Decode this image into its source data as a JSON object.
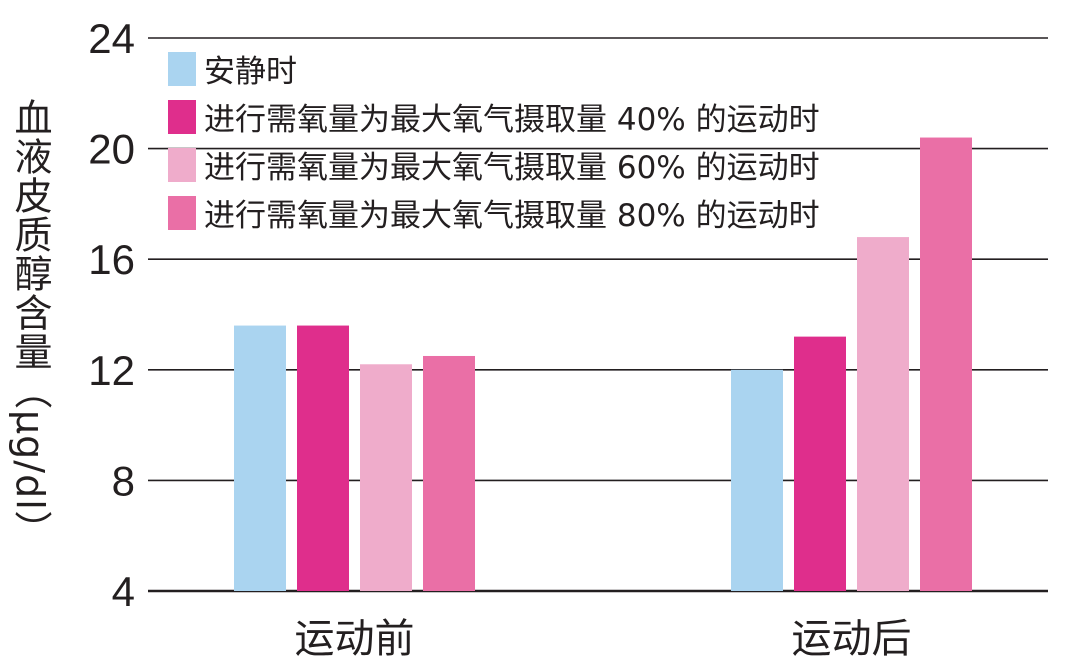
{
  "chart_data": {
    "type": "bar",
    "categories": [
      "运动前",
      "运动后"
    ],
    "ylabel": "血液皮质醇含量（μg/dl）",
    "ylim": [
      4,
      24
    ],
    "yticks": [
      4,
      8,
      12,
      16,
      20,
      24
    ],
    "grid": true,
    "legend_position": "top-left",
    "series": [
      {
        "name": "安静时",
        "color": "#aad4f0",
        "values": [
          13.6,
          12.0
        ]
      },
      {
        "name": "进行需氧量为最大氧气摄取量 40% 的运动时",
        "color": "#df2e8c",
        "values": [
          13.6,
          13.2
        ]
      },
      {
        "name": "进行需氧量为最大氧气摄取量 60% 的运动时",
        "color": "#efaccb",
        "values": [
          12.2,
          16.8
        ]
      },
      {
        "name": "进行需氧量为最大氧气摄取量 80% 的运动时",
        "color": "#ea6fa6",
        "values": [
          12.5,
          20.4
        ]
      }
    ]
  }
}
